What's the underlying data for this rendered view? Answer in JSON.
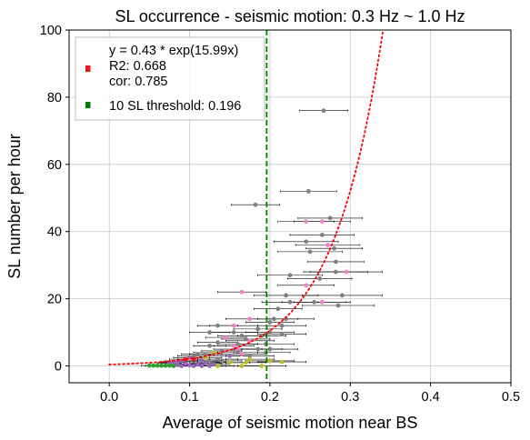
{
  "chart_data": {
    "type": "scatter",
    "title": "SL occurrence - seismic motion: 0.3 Hz ~ 1.0 Hz",
    "xlabel": "Average of seismic motion near BS",
    "ylabel": "SL number per hour",
    "xlim": [
      -0.05,
      0.5
    ],
    "ylim": [
      -5,
      100
    ],
    "xticks": [
      0.0,
      0.1,
      0.2,
      0.3,
      0.4,
      0.5
    ],
    "xtick_labels": [
      "0.0",
      "0.1",
      "0.2",
      "0.3",
      "0.4",
      "0.5"
    ],
    "yticks": [
      0,
      20,
      40,
      60,
      80,
      100
    ],
    "ytick_labels": [
      "0",
      "20",
      "40",
      "60",
      "80",
      "100"
    ],
    "grid": true,
    "legend_placement": "top-left",
    "legend": [
      {
        "text": "y = 0.43 * exp(15.99x)\nR2: 0.668\ncor: 0.785",
        "color": "#e41a1c",
        "marker": "square"
      },
      {
        "text": "10 SL threshold: 0.196",
        "color": "#007a00",
        "marker": "square"
      }
    ],
    "fit_curve": {
      "a": 0.43,
      "b": 15.99,
      "x_start": 0.0,
      "color": "#ff0000",
      "style": "dotted"
    },
    "threshold": {
      "x": 0.196,
      "color": "#008000",
      "style": "dashed"
    },
    "points": [
      {
        "x": 0.267,
        "y": 76,
        "xerr": 0.03,
        "color": "#808080"
      },
      {
        "x": 0.248,
        "y": 52,
        "xerr": 0.035,
        "color": "#808080"
      },
      {
        "x": 0.182,
        "y": 48,
        "xerr": 0.03,
        "color": "#808080"
      },
      {
        "x": 0.275,
        "y": 44,
        "xerr": 0.04,
        "color": "#808080"
      },
      {
        "x": 0.245,
        "y": 43,
        "xerr": 0.035,
        "color": "#ee82c8"
      },
      {
        "x": 0.265,
        "y": 43,
        "xerr": 0.035,
        "color": "#ee82c8"
      },
      {
        "x": 0.265,
        "y": 39,
        "xerr": 0.04,
        "color": "#808080"
      },
      {
        "x": 0.245,
        "y": 37,
        "xerr": 0.04,
        "color": "#808080"
      },
      {
        "x": 0.272,
        "y": 36,
        "xerr": 0.04,
        "color": "#ee82c8"
      },
      {
        "x": 0.28,
        "y": 35,
        "xerr": 0.035,
        "color": "#808080"
      },
      {
        "x": 0.25,
        "y": 34,
        "xerr": 0.04,
        "color": "#808080"
      },
      {
        "x": 0.282,
        "y": 31,
        "xerr": 0.035,
        "color": "#808080"
      },
      {
        "x": 0.282,
        "y": 28,
        "xerr": 0.04,
        "color": "#808080"
      },
      {
        "x": 0.295,
        "y": 28,
        "xerr": 0.045,
        "color": "#ee82c8"
      },
      {
        "x": 0.225,
        "y": 27,
        "xerr": 0.04,
        "color": "#808080"
      },
      {
        "x": 0.262,
        "y": 26,
        "xerr": 0.04,
        "color": "#808080"
      },
      {
        "x": 0.245,
        "y": 24,
        "xerr": 0.035,
        "color": "#ee82c8"
      },
      {
        "x": 0.165,
        "y": 22,
        "xerr": 0.03,
        "color": "#ee82c8"
      },
      {
        "x": 0.22,
        "y": 21,
        "xerr": 0.04,
        "color": "#808080"
      },
      {
        "x": 0.29,
        "y": 21,
        "xerr": 0.05,
        "color": "#808080"
      },
      {
        "x": 0.225,
        "y": 19,
        "xerr": 0.035,
        "color": "#808080"
      },
      {
        "x": 0.255,
        "y": 19,
        "xerr": 0.04,
        "color": "#808080"
      },
      {
        "x": 0.265,
        "y": 19,
        "xerr": 0.035,
        "color": "#ee82c8"
      },
      {
        "x": 0.21,
        "y": 17,
        "xerr": 0.03,
        "color": "#808080"
      },
      {
        "x": 0.285,
        "y": 18,
        "xerr": 0.045,
        "color": "#808080"
      },
      {
        "x": 0.205,
        "y": 14,
        "xerr": 0.03,
        "color": "#808080"
      },
      {
        "x": 0.22,
        "y": 14,
        "xerr": 0.035,
        "color": "#808080"
      },
      {
        "x": 0.175,
        "y": 14,
        "xerr": 0.03,
        "color": "#ee82c8"
      },
      {
        "x": 0.2,
        "y": 13,
        "xerr": 0.03,
        "color": "#808080"
      },
      {
        "x": 0.155,
        "y": 12,
        "xerr": 0.03,
        "color": "#ee82c8"
      },
      {
        "x": 0.135,
        "y": 12,
        "xerr": 0.025,
        "color": "#808080"
      },
      {
        "x": 0.215,
        "y": 12,
        "xerr": 0.03,
        "color": "#808080"
      },
      {
        "x": 0.185,
        "y": 11,
        "xerr": 0.03,
        "color": "#808080"
      },
      {
        "x": 0.125,
        "y": 10,
        "xerr": 0.025,
        "color": "#808080"
      },
      {
        "x": 0.155,
        "y": 10,
        "xerr": 0.03,
        "color": "#808080"
      },
      {
        "x": 0.2,
        "y": 10,
        "xerr": 0.03,
        "color": "#808080"
      },
      {
        "x": 0.215,
        "y": 9.5,
        "xerr": 0.03,
        "color": "#808080"
      },
      {
        "x": 0.165,
        "y": 9,
        "xerr": 0.03,
        "color": "#808080"
      },
      {
        "x": 0.19,
        "y": 9,
        "xerr": 0.03,
        "color": "#808080"
      },
      {
        "x": 0.145,
        "y": 8.5,
        "xerr": 0.025,
        "color": "#ee82c8"
      },
      {
        "x": 0.17,
        "y": 8,
        "xerr": 0.03,
        "color": "#808080"
      },
      {
        "x": 0.175,
        "y": 7.5,
        "xerr": 0.03,
        "color": "#ee82c8"
      },
      {
        "x": 0.135,
        "y": 7,
        "xerr": 0.025,
        "color": "#808080"
      },
      {
        "x": 0.16,
        "y": 6.5,
        "xerr": 0.025,
        "color": "#808080"
      },
      {
        "x": 0.195,
        "y": 6.5,
        "xerr": 0.035,
        "color": "#808080"
      },
      {
        "x": 0.155,
        "y": 6,
        "xerr": 0.025,
        "color": "#ee82c8"
      },
      {
        "x": 0.125,
        "y": 6,
        "xerr": 0.02,
        "color": "#808080"
      },
      {
        "x": 0.16,
        "y": 5,
        "xerr": 0.03,
        "color": "#ee82c8"
      },
      {
        "x": 0.185,
        "y": 5,
        "xerr": 0.03,
        "color": "#808080"
      },
      {
        "x": 0.2,
        "y": 5,
        "xerr": 0.035,
        "color": "#808080"
      },
      {
        "x": 0.14,
        "y": 4.5,
        "xerr": 0.025,
        "color": "#808080"
      },
      {
        "x": 0.16,
        "y": 4,
        "xerr": 0.025,
        "color": "#808080"
      },
      {
        "x": 0.195,
        "y": 4,
        "xerr": 0.03,
        "color": "#808080"
      },
      {
        "x": 0.13,
        "y": 4,
        "xerr": 0.025,
        "color": "#bcbd22"
      },
      {
        "x": 0.12,
        "y": 3.5,
        "xerr": 0.02,
        "color": "#808080"
      },
      {
        "x": 0.165,
        "y": 3.5,
        "xerr": 0.03,
        "color": "#ee82c8"
      },
      {
        "x": 0.11,
        "y": 3.5,
        "xerr": 0.02,
        "color": "#808080"
      },
      {
        "x": 0.15,
        "y": 3,
        "xerr": 0.025,
        "color": "#9467bd"
      },
      {
        "x": 0.175,
        "y": 3,
        "xerr": 0.03,
        "color": "#808080"
      },
      {
        "x": 0.105,
        "y": 3,
        "xerr": 0.02,
        "color": "#808080"
      },
      {
        "x": 0.1,
        "y": 2.5,
        "xerr": 0.02,
        "color": "#9467bd"
      },
      {
        "x": 0.12,
        "y": 2.5,
        "xerr": 0.02,
        "color": "#bcbd22"
      },
      {
        "x": 0.095,
        "y": 2,
        "xerr": 0.02,
        "color": "#e41a1c"
      },
      {
        "x": 0.135,
        "y": 2,
        "xerr": 0.025,
        "color": "#808080"
      },
      {
        "x": 0.105,
        "y": 2,
        "xerr": 0.02,
        "color": "#e41a1c"
      },
      {
        "x": 0.175,
        "y": 2,
        "xerr": 0.03,
        "color": "#bcbd22"
      },
      {
        "x": 0.14,
        "y": 1.5,
        "xerr": 0.025,
        "color": "#808080"
      },
      {
        "x": 0.09,
        "y": 1.5,
        "xerr": 0.02,
        "color": "#9467bd"
      },
      {
        "x": 0.115,
        "y": 1.5,
        "xerr": 0.02,
        "color": "#9467bd"
      },
      {
        "x": 0.085,
        "y": 1.2,
        "xerr": 0.02,
        "color": "#9467bd"
      },
      {
        "x": 0.125,
        "y": 1.2,
        "xerr": 0.02,
        "color": "#808080"
      },
      {
        "x": 0.2,
        "y": 1.5,
        "xerr": 0.03,
        "color": "#bcbd22"
      },
      {
        "x": 0.215,
        "y": 1.2,
        "xerr": 0.03,
        "color": "#bcbd22"
      },
      {
        "x": 0.17,
        "y": 1,
        "xerr": 0.025,
        "color": "#bcbd22"
      },
      {
        "x": 0.08,
        "y": 1,
        "xerr": 0.015,
        "color": "#9467bd"
      },
      {
        "x": 0.15,
        "y": 1,
        "xerr": 0.025,
        "color": "#bcbd22"
      },
      {
        "x": 0.075,
        "y": 0.8,
        "xerr": 0.015,
        "color": "#9467bd"
      },
      {
        "x": 0.12,
        "y": 0.8,
        "xerr": 0.02,
        "color": "#9467bd"
      },
      {
        "x": 0.095,
        "y": 0.6,
        "xerr": 0.02,
        "color": "#9467bd"
      },
      {
        "x": 0.11,
        "y": 0.5,
        "xerr": 0.02,
        "color": "#9467bd"
      },
      {
        "x": 0.13,
        "y": 0.5,
        "xerr": 0.02,
        "color": "#9467bd"
      },
      {
        "x": 0.085,
        "y": 0.3,
        "xerr": 0.015,
        "color": "#9467bd"
      },
      {
        "x": 0.1,
        "y": 0.2,
        "xerr": 0.02,
        "color": "#9467bd"
      },
      {
        "x": 0.055,
        "y": 0.1,
        "xerr": 0.01,
        "color": "#2ca02c"
      },
      {
        "x": 0.06,
        "y": 0.1,
        "xerr": 0.01,
        "color": "#2ca02c"
      },
      {
        "x": 0.065,
        "y": 0.1,
        "xerr": 0.01,
        "color": "#2ca02c"
      },
      {
        "x": 0.07,
        "y": 0.1,
        "xerr": 0.012,
        "color": "#2ca02c"
      },
      {
        "x": 0.05,
        "y": 0.1,
        "xerr": 0.01,
        "color": "#2ca02c"
      },
      {
        "x": 0.075,
        "y": 0.1,
        "xerr": 0.012,
        "color": "#2ca02c"
      },
      {
        "x": 0.08,
        "y": 0.0,
        "xerr": 0.015,
        "color": "#2ca02c"
      },
      {
        "x": 0.09,
        "y": 0.0,
        "xerr": 0.015,
        "color": "#9467bd"
      },
      {
        "x": 0.105,
        "y": 0.0,
        "xerr": 0.02,
        "color": "#9467bd"
      },
      {
        "x": 0.115,
        "y": 0.0,
        "xerr": 0.02,
        "color": "#9467bd"
      },
      {
        "x": 0.125,
        "y": 0.0,
        "xerr": 0.02,
        "color": "#9467bd"
      },
      {
        "x": 0.135,
        "y": 0.0,
        "xerr": 0.02,
        "color": "#bcbd22"
      },
      {
        "x": 0.165,
        "y": 0.0,
        "xerr": 0.025,
        "color": "#bcbd22"
      },
      {
        "x": 0.19,
        "y": 0.0,
        "xerr": 0.03,
        "color": "#bcbd22"
      }
    ]
  }
}
